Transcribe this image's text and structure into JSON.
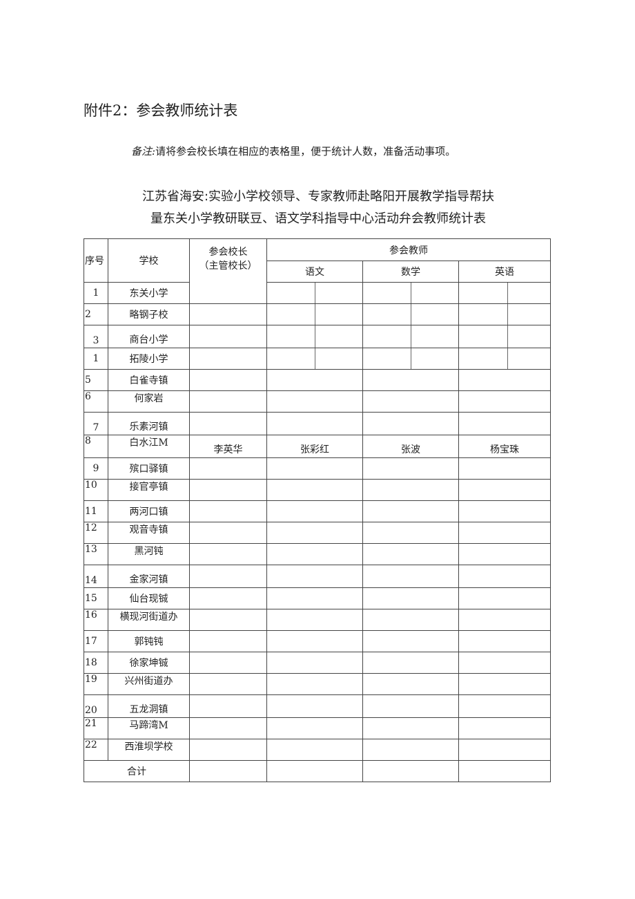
{
  "heading": "附件2：参会教师统计表",
  "note": {
    "label": "备注:",
    "text": "请将参会校长填在相应的表格里，便于统计人数，准备活动事项。"
  },
  "table_title": {
    "line1": "江苏省海安:实验小学校领导、专家教师赴略阳开展教学指导帮扶",
    "line2": "量东关小学教研联豆、语文学科指导中心活动弁会教师统计表"
  },
  "table": {
    "headers": {
      "seq": "序号",
      "school": "学校",
      "principal_line1": "参会校长",
      "principal_line2": "（主管校长）",
      "teachers": "参会教师",
      "chinese": "语文",
      "math": "数学",
      "english": "英语"
    },
    "rows": [
      {
        "seq": "1",
        "school": "东关小学"
      },
      {
        "seq": "2",
        "school": "略钢子校"
      },
      {
        "seq": "3",
        "school": "商台小学"
      },
      {
        "seq": "1",
        "school": "拓陵小学"
      },
      {
        "seq": "5",
        "school": "白雀寺镇"
      },
      {
        "seq": "6",
        "school": "何家岩"
      },
      {
        "seq": "7",
        "school": "乐素河镇"
      },
      {
        "seq": "8",
        "school": "白水江M",
        "principal": "李英华",
        "chinese": "张彩红",
        "math": "张波",
        "english": "杨宝珠"
      },
      {
        "seq": "9",
        "school": "殡口驿镇"
      },
      {
        "seq": "10",
        "school": "接官亭镇"
      },
      {
        "seq": "11",
        "school": "两河口镇"
      },
      {
        "seq": "12",
        "school": "观音寺镇"
      },
      {
        "seq": "13",
        "school": "黑河钝"
      },
      {
        "seq": "14",
        "school": "金家河镇"
      },
      {
        "seq": "15",
        "school": "仙台现铖"
      },
      {
        "seq": "16",
        "school": "横现河街道办"
      },
      {
        "seq": "17",
        "school": "郭钝钝"
      },
      {
        "seq": "18",
        "school": "徐家坤铖"
      },
      {
        "seq": "19",
        "school": "兴州街道办"
      },
      {
        "seq": "20",
        "school": "五龙洞镇"
      },
      {
        "seq": "21",
        "school": "马蹄湾M"
      },
      {
        "seq": "22",
        "school": "西淮坝学校"
      }
    ],
    "total_label": "合计"
  }
}
